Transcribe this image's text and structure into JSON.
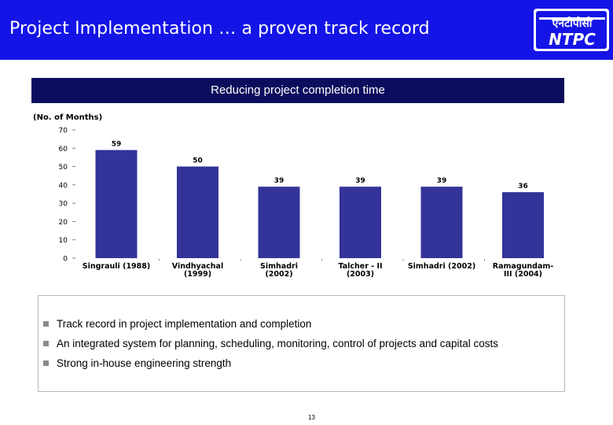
{
  "header": {
    "title": "Project Implementation …  a proven track record"
  },
  "logo": {
    "hindi": "एनटीपीसी",
    "english": "NTPC"
  },
  "banner": {
    "text": "Reducing project completion time"
  },
  "chart_data": {
    "type": "bar",
    "ylabel": "(No. of Months)",
    "ylim": [
      0,
      70
    ],
    "yticks": [
      0,
      10,
      20,
      30,
      40,
      50,
      60,
      70
    ],
    "categories": [
      [
        "Singrauli (1988)"
      ],
      [
        "Vindhyachal",
        "(1999)"
      ],
      [
        "Simhadri",
        "(2002)"
      ],
      [
        "Talcher - II",
        "(2003)"
      ],
      [
        "Simhadri (2002)"
      ],
      [
        "Ramagundam-",
        "III (2004)"
      ]
    ],
    "values": [
      59,
      50,
      39,
      39,
      39,
      36
    ],
    "bar_color": "#333399"
  },
  "bullets": [
    "Track record in project implementation and completion",
    "An integrated system for planning, scheduling, monitoring, control of projects and capital costs",
    "Strong in-house engineering strength"
  ],
  "page_number": "13"
}
